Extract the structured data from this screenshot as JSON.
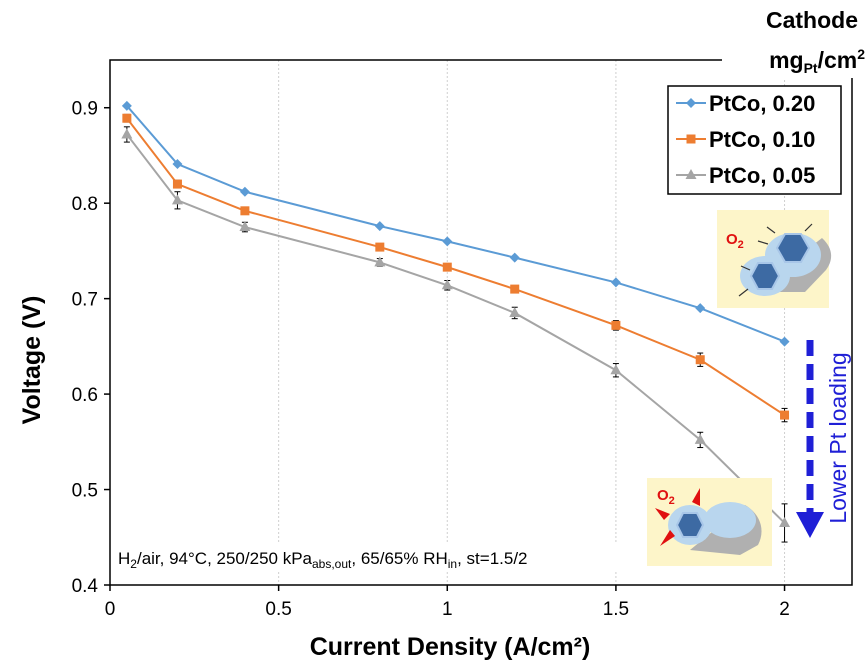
{
  "chart_data": {
    "type": "line",
    "xlabel": "Current Density (A/cm²)",
    "ylabel": "Voltage (V)",
    "xlim": [
      0,
      2.2
    ],
    "ylim": [
      0.4,
      0.95
    ],
    "xticks": [
      "0",
      "0.5",
      "1",
      "1.5",
      "2"
    ],
    "yticks": [
      "0.4",
      "0.5",
      "0.6",
      "0.7",
      "0.8",
      "0.9"
    ],
    "grid": "vertical",
    "legend_position": "top-right",
    "legend_title": "Cathode mgPt/cm2",
    "legend_title_parts": {
      "line1": "Cathode",
      "base": "mg",
      "sub": "Pt",
      "tail": "/cm",
      "sup": "2"
    },
    "series": [
      {
        "name": "PtCo, 0.20",
        "color": "#5b9bd5",
        "marker": "diamond",
        "x": [
          0.05,
          0.2,
          0.4,
          0.8,
          1.0,
          1.2,
          1.5,
          1.75,
          2.0
        ],
        "y": [
          0.902,
          0.841,
          0.812,
          0.776,
          0.76,
          0.743,
          0.717,
          0.69,
          0.655
        ],
        "err": [
          0,
          0,
          0,
          0,
          0,
          0,
          0,
          0,
          0
        ]
      },
      {
        "name": "PtCo, 0.10",
        "color": "#ed7d31",
        "marker": "square",
        "x": [
          0.05,
          0.2,
          0.4,
          0.8,
          1.0,
          1.2,
          1.5,
          1.75,
          2.0
        ],
        "y": [
          0.889,
          0.82,
          0.792,
          0.754,
          0.733,
          0.71,
          0.672,
          0.636,
          0.578
        ],
        "err": [
          0.004,
          0.004,
          0,
          0,
          0,
          0,
          0.005,
          0.007,
          0.007
        ]
      },
      {
        "name": "PtCo, 0.05",
        "color": "#a5a5a5",
        "marker": "triangle",
        "x": [
          0.05,
          0.2,
          0.4,
          0.8,
          1.0,
          1.2,
          1.5,
          1.75,
          2.0
        ],
        "y": [
          0.872,
          0.803,
          0.775,
          0.738,
          0.714,
          0.685,
          0.625,
          0.552,
          0.465
        ],
        "err": [
          0.008,
          0.009,
          0.005,
          0.004,
          0.005,
          0.006,
          0.007,
          0.008,
          0.02
        ]
      }
    ],
    "annotations": {
      "conditions": {
        "base1": "H",
        "sub1": "2",
        "mid1": "/air, 94°C, 250/250 kPa",
        "sub2": "abs,out",
        "mid2": ", 65/65% RH",
        "sub3": "in",
        "tail": ", st=1.5/2"
      },
      "arrow_label": "Lower Pt loading",
      "o2_label_base": "O",
      "o2_label_sub": "2"
    },
    "colors": {
      "arrow": "#1f1fd6",
      "inset_bg": "#fdf5c9",
      "o2_label": "#e01010"
    }
  }
}
